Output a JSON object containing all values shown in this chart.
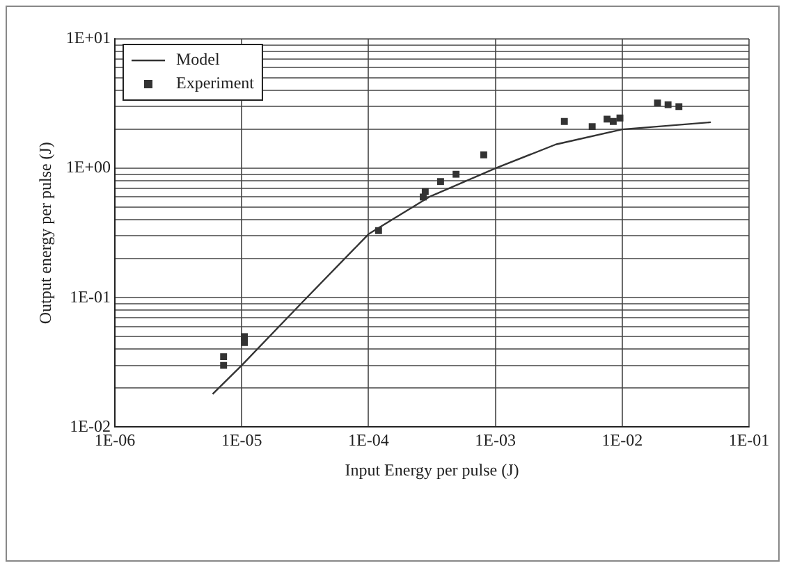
{
  "chart_data": {
    "type": "scatter",
    "xlabel": "Input Energy per pulse (J)",
    "ylabel": "Output energy per pulse (J)",
    "log": "xy",
    "grid": true,
    "legend": "top left",
    "xlim": [
      1e-06,
      0.1
    ],
    "ylim": [
      0.01,
      10
    ],
    "xticks": [
      {
        "value": 1e-06,
        "label": "1E-06"
      },
      {
        "value": 1e-05,
        "label": "1E-05"
      },
      {
        "value": 0.0001,
        "label": "1E-04"
      },
      {
        "value": 0.001,
        "label": "1E-03"
      },
      {
        "value": 0.01,
        "label": "1E-02"
      },
      {
        "value": 0.1,
        "label": "1E-01"
      }
    ],
    "yticks": [
      {
        "value": 0.01,
        "label": "1E-02"
      },
      {
        "value": 0.02,
        "label": null
      },
      {
        "value": 0.03,
        "label": null
      },
      {
        "value": 0.04,
        "label": null
      },
      {
        "value": 0.05,
        "label": null
      },
      {
        "value": 0.06,
        "label": null
      },
      {
        "value": 0.07,
        "label": null
      },
      {
        "value": 0.08,
        "label": null
      },
      {
        "value": 0.09,
        "label": null
      },
      {
        "value": 0.1,
        "label": "1E-01"
      },
      {
        "value": 0.2,
        "label": null
      },
      {
        "value": 0.3,
        "label": null
      },
      {
        "value": 0.4,
        "label": null
      },
      {
        "value": 0.5,
        "label": null
      },
      {
        "value": 0.6,
        "label": null
      },
      {
        "value": 0.7,
        "label": null
      },
      {
        "value": 0.8,
        "label": null
      },
      {
        "value": 0.9,
        "label": null
      },
      {
        "value": 1,
        "label": "1E+00"
      },
      {
        "value": 2,
        "label": null
      },
      {
        "value": 3,
        "label": null
      },
      {
        "value": 4,
        "label": null
      },
      {
        "value": 5,
        "label": null
      },
      {
        "value": 6,
        "label": null
      },
      {
        "value": 7,
        "label": null
      },
      {
        "value": 8,
        "label": null
      },
      {
        "value": 9,
        "label": null
      },
      {
        "value": 10,
        "label": "1E+01"
      }
    ],
    "series": [
      {
        "name": "Model",
        "type": "line",
        "color": "#333333",
        "marker": "none",
        "line_style": "solid",
        "x": [
          5.9e-06,
          1e-05,
          3e-05,
          0.0001,
          0.0003,
          0.001,
          0.003,
          0.01,
          0.05
        ],
        "values": [
          0.018,
          0.03,
          0.092,
          0.31,
          0.6,
          1.0,
          1.53,
          2.0,
          2.27
        ]
      },
      {
        "name": "Experiment",
        "type": "scatter",
        "color": "#333333",
        "marker": "square",
        "x": [
          7.2e-06,
          7.2e-06,
          1.05e-05,
          1.05e-05,
          0.00012,
          0.00027,
          0.00028,
          0.00037,
          0.00049,
          0.00081,
          0.0035,
          0.0058,
          0.0076,
          0.0085,
          0.0096,
          0.019,
          0.023,
          0.028
        ],
        "values": [
          0.03,
          0.035,
          0.045,
          0.05,
          0.33,
          0.6,
          0.66,
          0.79,
          0.9,
          1.27,
          2.3,
          2.1,
          2.4,
          2.3,
          2.45,
          3.2,
          3.1,
          3.0
        ]
      }
    ]
  }
}
